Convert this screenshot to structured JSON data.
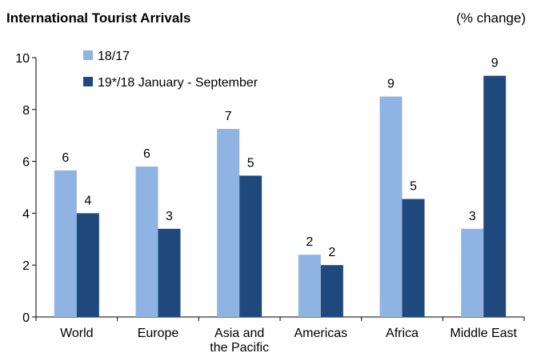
{
  "title": "International Tourist Arrivals",
  "unit_label": "(% change)",
  "colors": {
    "series1": "#8fb3e2",
    "series2": "#1f497d",
    "axis": "#000000"
  },
  "chart_data": {
    "type": "bar",
    "title": "International Tourist Arrivals",
    "ylabel": "(% change)",
    "xlabel": "",
    "ylim": [
      0,
      10
    ],
    "yticks": [
      0,
      2,
      4,
      6,
      8,
      10
    ],
    "grid": false,
    "legend_position": "top-left",
    "categories": [
      [
        "World"
      ],
      [
        "Europe"
      ],
      [
        "Asia and",
        "the Pacific"
      ],
      [
        "Americas"
      ],
      [
        "Africa"
      ],
      [
        "Middle East"
      ]
    ],
    "series": [
      {
        "name": "18/17",
        "values": [
          5.65,
          5.8,
          7.25,
          2.4,
          8.5,
          3.4
        ],
        "labels": [
          "6",
          "6",
          "7",
          "2",
          "9",
          "3"
        ]
      },
      {
        "name": "19*/18 January - September",
        "values": [
          4.0,
          3.4,
          5.45,
          2.0,
          4.55,
          9.3
        ],
        "labels": [
          "4",
          "3",
          "5",
          "2",
          "5",
          "9"
        ]
      }
    ]
  }
}
